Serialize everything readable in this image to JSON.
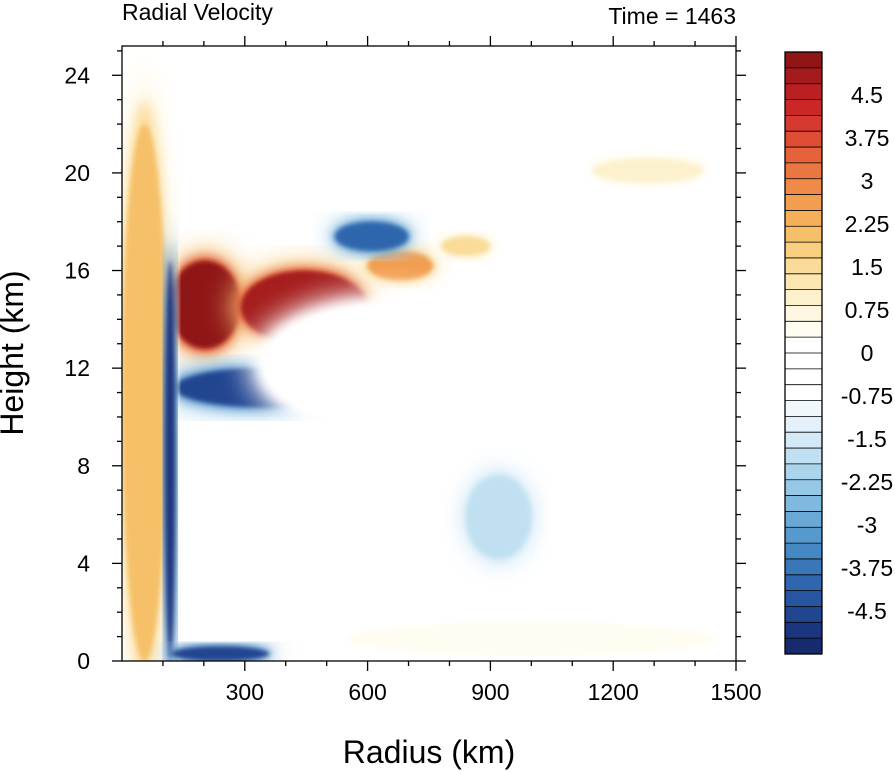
{
  "chart_data": {
    "type": "heatmap",
    "title_left": "Radial Velocity",
    "title_right": "Time = 1463",
    "xlabel": "Radius (km)",
    "ylabel": "Height (km)",
    "xlim": [
      0,
      1500
    ],
    "ylim": [
      0,
      25.2
    ],
    "x_ticks": [
      300,
      600,
      900,
      1200,
      1500
    ],
    "x_tick_labels": [
      "300",
      "600",
      "900",
      "1200",
      "1500"
    ],
    "y_ticks": [
      0,
      4,
      8,
      12,
      16,
      20,
      24
    ],
    "y_tick_labels": [
      "0",
      "4",
      "8",
      "12",
      "16",
      "20",
      "24"
    ],
    "colorbar": {
      "min": -5.25,
      "max": 5.25,
      "step": 0.25,
      "labels": [
        "4.5",
        "3.75",
        "3",
        "2.25",
        "1.5",
        "0.75",
        "0",
        "-0.75",
        "-1.5",
        "-2.25",
        "-3",
        "-3.75",
        "-4.5"
      ],
      "label_values": [
        4.5,
        3.75,
        3,
        2.25,
        1.5,
        0.75,
        0,
        -0.75,
        -1.5,
        -2.25,
        -3,
        -3.75,
        -4.5
      ],
      "colors_high_to_low": [
        "#8f1516",
        "#a51a1d",
        "#b91f23",
        "#cc2727",
        "#d5392f",
        "#de4d34",
        "#e5623a",
        "#ea7641",
        "#ef8a48",
        "#f29d4f",
        "#f4af58",
        "#f6c069",
        "#f8cf7f",
        "#fadc98",
        "#fce7b3",
        "#fdf1cd",
        "#fef8e3",
        "#fffcf1",
        "#ffffff",
        "#ffffff",
        "#ffffff",
        "#ffffff",
        "#f1f8fc",
        "#e4f1fa",
        "#d3e9f6",
        "#c0e0f1",
        "#abd4ec",
        "#95c7e6",
        "#7fb9df",
        "#6aa9d6",
        "#5699cd",
        "#4688c4",
        "#3977b9",
        "#2f66ad",
        "#28559f",
        "#224590",
        "#1c357f",
        "#172a6b"
      ]
    },
    "features": [
      {
        "r": [
          115,
          290
        ],
        "z": [
          12.8,
          16.4
        ],
        "u": 5.2
      },
      {
        "r": [
          290,
          600
        ],
        "z": [
          13.0,
          16.0
        ],
        "u": 5.0
      },
      {
        "r": [
          600,
          760
        ],
        "z": [
          15.6,
          16.8
        ],
        "u": 3.0
      },
      {
        "r": [
          780,
          900
        ],
        "z": [
          16.6,
          17.4
        ],
        "u": 1.8
      },
      {
        "r": [
          1150,
          1420
        ],
        "z": [
          19.6,
          20.6
        ],
        "u": 1.5
      },
      {
        "r": [
          130,
          560
        ],
        "z": [
          10.4,
          12.0
        ],
        "u": -3.6
      },
      {
        "r": [
          520,
          700
        ],
        "z": [
          16.8,
          18.0
        ],
        "u": -3.2
      },
      {
        "r": [
          840,
          1000
        ],
        "z": [
          4.2,
          7.6
        ],
        "u": -1.2
      },
      {
        "r": [
          350,
          950
        ],
        "z": [
          9.6,
          14.6
        ],
        "u": 0.6
      },
      {
        "r": [
          0,
          110
        ],
        "z": [
          0,
          22
        ],
        "u": 2.5
      },
      {
        "r": [
          105,
          130
        ],
        "z": [
          0,
          16.4
        ],
        "u": -3.8
      },
      {
        "r": [
          120,
          360
        ],
        "z": [
          0,
          0.6
        ],
        "u": -3.5
      },
      {
        "r": [
          550,
          1450
        ],
        "z": [
          0.2,
          1.6
        ],
        "u": 1.0
      }
    ]
  }
}
